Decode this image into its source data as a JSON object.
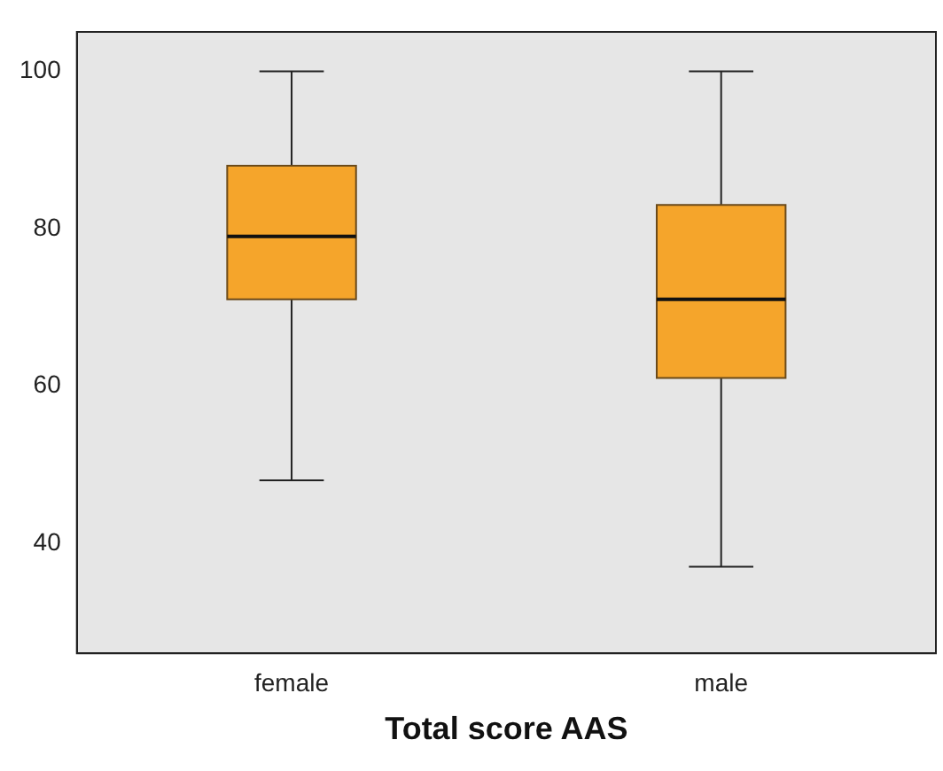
{
  "chart_data": {
    "type": "box",
    "xlabel": "Total score AAS",
    "categories": [
      "female",
      "male"
    ],
    "color": "#f5a52b",
    "boxes": [
      {
        "low": 48,
        "q1": 71,
        "median": 79,
        "q3": 88,
        "high": 100
      },
      {
        "low": 37,
        "q1": 61,
        "median": 71,
        "q3": 83,
        "high": 100
      }
    ],
    "ylim": [
      26,
      105
    ],
    "yticks": [
      40,
      60,
      80,
      100
    ],
    "grid": false,
    "legend": false
  }
}
